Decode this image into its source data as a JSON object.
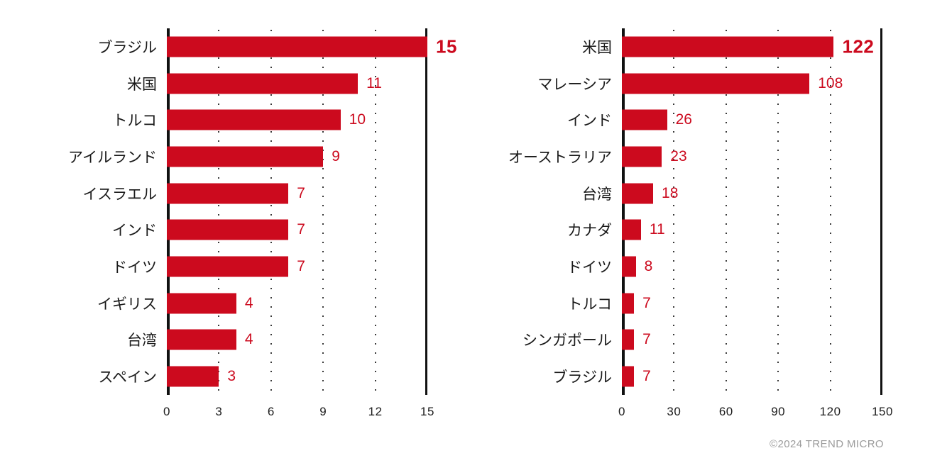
{
  "footer": {
    "copyright": "©2024 TREND MICRO"
  },
  "colors": {
    "bar": "#CC0A1E",
    "value": "#CC0A1E",
    "axis": "#111111",
    "grid_dot": "#3a3a3a",
    "copyright": "#9b9b9b",
    "background": "#ffffff",
    "label": "#1a1a1a"
  },
  "chart_data": [
    {
      "type": "bar",
      "orientation": "horizontal",
      "title": "",
      "categories": [
        "ブラジル",
        "米国",
        "トルコ",
        "アイルランド",
        "イスラエル",
        "インド",
        "ドイツ",
        "イギリス",
        "台湾",
        "スペイン"
      ],
      "values": [
        15,
        11,
        10,
        9,
        7,
        7,
        7,
        4,
        4,
        3
      ],
      "xlim": [
        0,
        15
      ],
      "xticks": [
        0,
        3,
        6,
        9,
        12,
        15
      ],
      "grid": "dotted vertical gridlines at interior ticks, solid line at max tick",
      "legend": "none",
      "emphasize_first_value": true
    },
    {
      "type": "bar",
      "orientation": "horizontal",
      "title": "",
      "categories": [
        "米国",
        "マレーシア",
        "インド",
        "オーストラリア",
        "台湾",
        "カナダ",
        "ドイツ",
        "トルコ",
        "シンガポール",
        "ブラジル"
      ],
      "values": [
        122,
        108,
        26,
        23,
        18,
        11,
        8,
        7,
        7,
        7
      ],
      "xlim": [
        0,
        150
      ],
      "xticks": [
        0,
        30,
        60,
        90,
        120,
        150
      ],
      "grid": "dotted vertical gridlines at interior ticks, solid line at max tick",
      "legend": "none",
      "emphasize_first_value": true
    }
  ]
}
